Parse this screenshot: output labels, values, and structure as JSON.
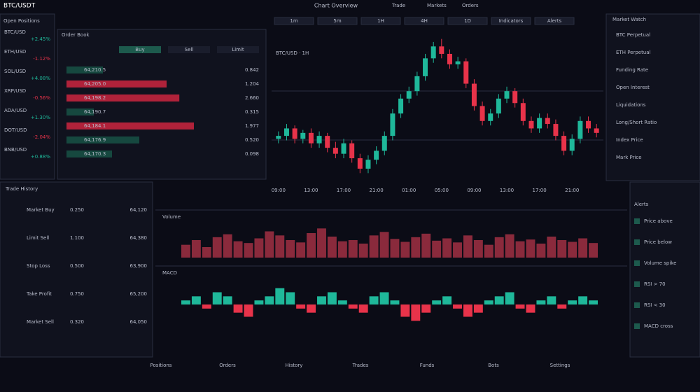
{
  "header": {
    "logo": "BTC/USDT",
    "title": "Chart Overview",
    "menu": [
      "Trade",
      "Markets",
      "Orders"
    ]
  },
  "left_panel": {
    "title": "Open Positions",
    "rows": [
      [
        "BTC/USD",
        "+2.45%"
      ],
      [
        "ETH/USD",
        "-1.12%"
      ],
      [
        "SOL/USD",
        "+4.08%"
      ],
      [
        "XRP/USD",
        "-0.56%"
      ],
      [
        "ADA/USD",
        "+1.30%"
      ],
      [
        "DOT/USD",
        "-2.04%"
      ],
      [
        "BNB/USD",
        "+0.88%"
      ]
    ]
  },
  "order_book": {
    "title": "Order Book",
    "tabs": [
      "Buy",
      "Sell",
      "Limit"
    ],
    "rows": [
      {
        "price": "64,210.5",
        "amount": "0.842",
        "depth": 20,
        "side": "buy"
      },
      {
        "price": "64,205.0",
        "amount": "1.204",
        "depth": 55,
        "side": "sell"
      },
      {
        "price": "64,198.2",
        "amount": "2.660",
        "depth": 62,
        "side": "sell"
      },
      {
        "price": "64,190.7",
        "amount": "0.315",
        "depth": 15,
        "side": "buy"
      },
      {
        "price": "64,184.1",
        "amount": "1.977",
        "depth": 70,
        "side": "sell"
      },
      {
        "price": "64,176.9",
        "amount": "0.520",
        "depth": 40,
        "side": "buy"
      },
      {
        "price": "64,170.3",
        "amount": "0.098",
        "depth": 25,
        "side": "buy"
      }
    ]
  },
  "toolbar": [
    "1m",
    "5m",
    "1H",
    "4H",
    "1D",
    "Indicators",
    "Alerts"
  ],
  "chart_data": {
    "type": "candlestick",
    "title": "BTC/USD · 1H",
    "open": [
      28,
      30,
      35,
      28,
      32,
      25,
      30,
      22,
      18,
      25,
      15,
      8,
      14,
      20,
      30,
      45,
      55,
      60,
      70,
      82,
      90,
      85,
      78,
      80,
      65,
      50,
      40,
      45,
      55,
      60,
      52,
      40,
      35,
      42,
      38,
      30,
      20,
      28,
      40,
      35
    ],
    "high": [
      33,
      38,
      37,
      34,
      35,
      33,
      32,
      26,
      28,
      27,
      18,
      17,
      23,
      33,
      48,
      58,
      63,
      73,
      85,
      93,
      95,
      88,
      83,
      82,
      68,
      53,
      48,
      58,
      63,
      62,
      55,
      43,
      45,
      45,
      41,
      33,
      31,
      43,
      43,
      38
    ],
    "low": [
      25,
      27,
      25,
      25,
      22,
      22,
      19,
      15,
      15,
      12,
      5,
      5,
      11,
      17,
      27,
      42,
      52,
      57,
      67,
      79,
      82,
      75,
      75,
      62,
      47,
      37,
      37,
      42,
      52,
      49,
      37,
      32,
      32,
      35,
      27,
      17,
      17,
      25,
      32,
      29
    ],
    "close": [
      30,
      35,
      28,
      32,
      25,
      30,
      22,
      18,
      25,
      15,
      8,
      14,
      20,
      30,
      45,
      55,
      60,
      70,
      82,
      90,
      85,
      78,
      80,
      65,
      50,
      40,
      45,
      55,
      60,
      52,
      40,
      35,
      42,
      38,
      30,
      20,
      28,
      40,
      35,
      32
    ],
    "up_color": "#1fb89a",
    "down_color": "#e8334a",
    "ylim": [
      0,
      100
    ],
    "categories": [
      "09:00",
      null,
      null,
      null,
      "13:00",
      null,
      null,
      null,
      "17:00",
      null,
      null,
      null,
      "21:00",
      null,
      null,
      null,
      "01:00",
      null,
      null,
      null,
      "05:00",
      null,
      null,
      null,
      "09:00",
      null,
      null,
      null,
      "13:00",
      null,
      null,
      null,
      "17:00",
      null,
      null,
      null,
      "21:00",
      null,
      null,
      null
    ]
  },
  "volume": {
    "type": "bar",
    "title": "Volume",
    "ylim": [
      0,
      60
    ],
    "color": "#8a2a3c",
    "values": [
      22,
      30,
      18,
      35,
      40,
      28,
      25,
      33,
      45,
      38,
      30,
      26,
      42,
      50,
      36,
      28,
      30,
      24,
      38,
      44,
      32,
      27,
      35,
      41,
      29,
      33,
      26,
      38,
      30,
      22,
      35,
      40,
      28,
      31,
      24,
      36,
      30,
      27,
      33,
      25
    ]
  },
  "macd": {
    "type": "bar",
    "title": "MACD",
    "ylim": [
      -6,
      6
    ],
    "up_color": "#1fb89a",
    "down_color": "#e8334a",
    "values": [
      1,
      2,
      -1,
      3,
      2,
      -2,
      -3,
      1,
      2,
      4,
      3,
      -1,
      -2,
      2,
      3,
      1,
      -1,
      -2,
      2,
      3,
      1,
      -3,
      -4,
      -2,
      1,
      2,
      -1,
      -3,
      -2,
      1,
      2,
      3,
      -1,
      -2,
      1,
      2,
      -1,
      1,
      2,
      1
    ]
  },
  "right_panel": {
    "title": "Market Watch",
    "items": [
      "BTC Perpetual",
      "ETH Perpetual",
      "Funding Rate",
      "Open Interest",
      "Liquidations",
      "Long/Short Ratio",
      "Index Price",
      "Mark Price"
    ]
  },
  "bottom_table": {
    "title": "Trade History",
    "rows": [
      [
        "Market Buy",
        "0.250",
        "64,120"
      ],
      [
        "Limit Sell",
        "1.100",
        "64,380"
      ],
      [
        "Stop Loss",
        "0.500",
        "63,900"
      ],
      [
        "Take Profit",
        "0.750",
        "65,200"
      ],
      [
        "Market Sell",
        "0.320",
        "64,050"
      ]
    ]
  },
  "side_list": {
    "title": "Alerts",
    "items": [
      "Price above",
      "Price below",
      "Volume spike",
      "RSI > 70",
      "RSI < 30",
      "MACD cross"
    ]
  },
  "footer": [
    "Positions",
    "Orders",
    "History",
    "Trades",
    "Funds",
    "Bots",
    "Settings"
  ]
}
